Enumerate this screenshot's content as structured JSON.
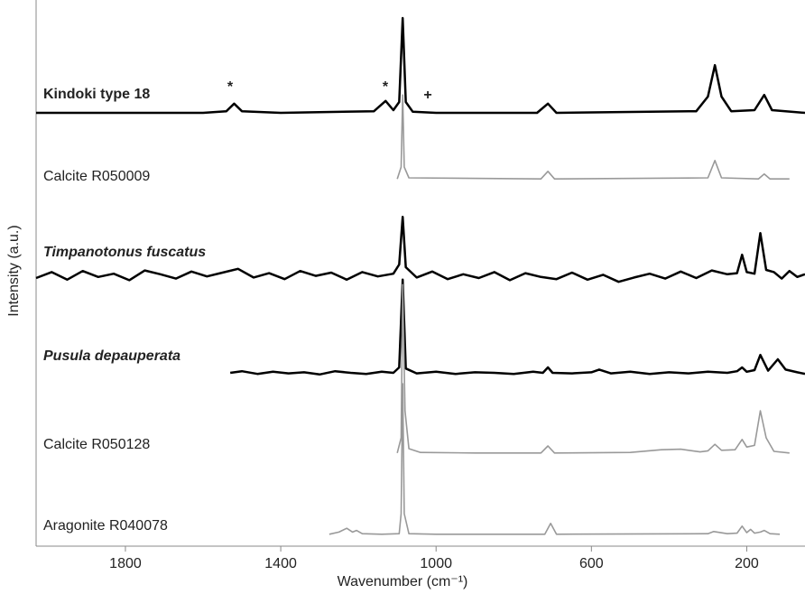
{
  "chart_data": {
    "type": "line",
    "x_label": "Wavenumber (cm⁻¹)",
    "y_label": "Intensity (a.u.)",
    "xlim": [
      2030,
      50
    ],
    "ylim": [
      0,
      100
    ],
    "xticks": [
      1800,
      1400,
      1000,
      600,
      200
    ],
    "annotations": [
      "*",
      "*",
      "+"
    ],
    "series": [
      {
        "name": "Kindoki type 18",
        "color": "#000000",
        "style": "bold",
        "x": [
          2030,
          1600,
          1540,
          1520,
          1500,
          1400,
          1160,
          1130,
          1110,
          1095,
          1086,
          1078,
          1060,
          1000,
          740,
          712,
          690,
          330,
          300,
          282,
          265,
          240,
          180,
          155,
          135,
          50
        ],
        "values": [
          80,
          80,
          80.3,
          81.7,
          80.3,
          80,
          80.3,
          82.2,
          80.5,
          82,
          97.5,
          82,
          80.2,
          80,
          80,
          81.7,
          80,
          80.3,
          83,
          88.8,
          83,
          80.3,
          80.5,
          83.3,
          80.5,
          80
        ]
      },
      {
        "name": "Calcite R050009",
        "color": "#999999",
        "style": "normal",
        "x": [
          1100,
          1090,
          1086,
          1082,
          1070,
          730,
          712,
          695,
          300,
          282,
          265,
          170,
          155,
          140,
          90
        ],
        "values": [
          67.8,
          70,
          83.3,
          70,
          68,
          67.8,
          69.2,
          67.8,
          68,
          71.2,
          68,
          67.8,
          68.7,
          67.8,
          67.8
        ]
      },
      {
        "name": "Timpanotonus fuscatus",
        "color": "#000000",
        "style": "bold-italic",
        "x": [
          2030,
          1990,
          1950,
          1910,
          1870,
          1830,
          1790,
          1750,
          1710,
          1670,
          1630,
          1590,
          1550,
          1510,
          1470,
          1430,
          1390,
          1350,
          1310,
          1270,
          1230,
          1190,
          1150,
          1110,
          1095,
          1086,
          1078,
          1050,
          1010,
          970,
          930,
          890,
          850,
          810,
          770,
          730,
          690,
          650,
          610,
          570,
          530,
          490,
          450,
          410,
          370,
          330,
          290,
          250,
          225,
          212,
          200,
          180,
          165,
          150,
          130,
          110,
          90,
          70,
          50
        ],
        "values": [
          49.5,
          50.6,
          49.2,
          50.8,
          49.7,
          50.3,
          49.1,
          50.9,
          50.2,
          49.4,
          50.7,
          49.8,
          50.5,
          51.2,
          49.6,
          50.4,
          49.3,
          50.8,
          49.9,
          50.5,
          49.2,
          50.6,
          49.8,
          50.3,
          52,
          60.8,
          51.5,
          49.6,
          50.7,
          49.3,
          50.2,
          49.5,
          50.6,
          49.1,
          50.4,
          49.7,
          49.3,
          50.5,
          49.2,
          50.1,
          48.8,
          49.6,
          50.3,
          49.4,
          50.7,
          49.5,
          50.9,
          50.2,
          50.4,
          53.8,
          50.6,
          50.3,
          57.8,
          51,
          50.6,
          49.4,
          50.8,
          49.7,
          50.2
        ]
      },
      {
        "name": "Pusula depauperata",
        "color": "#000000",
        "style": "bold-italic",
        "x": [
          1530,
          1500,
          1460,
          1420,
          1380,
          1340,
          1300,
          1260,
          1220,
          1180,
          1140,
          1110,
          1095,
          1086,
          1078,
          1050,
          1000,
          950,
          900,
          850,
          800,
          750,
          725,
          712,
          700,
          650,
          600,
          580,
          550,
          500,
          450,
          400,
          350,
          300,
          250,
          225,
          212,
          200,
          180,
          165,
          145,
          120,
          100,
          70,
          50
        ],
        "values": [
          32,
          32.3,
          31.8,
          32.2,
          31.9,
          32.1,
          31.7,
          32.3,
          32,
          31.8,
          32.2,
          32,
          33,
          49.2,
          32.8,
          31.9,
          32.2,
          31.8,
          32.1,
          32,
          31.8,
          32.2,
          32,
          33,
          32,
          31.9,
          32.1,
          32.6,
          31.9,
          32.2,
          31.8,
          32.1,
          31.9,
          32.2,
          32,
          32.3,
          33,
          32.2,
          32.5,
          35.3,
          32.4,
          34.5,
          32.6,
          32.1,
          31.8
        ]
      },
      {
        "name": "Calcite R050128",
        "color": "#999999",
        "style": "normal",
        "x": [
          1100,
          1090,
          1086,
          1080,
          1070,
          1040,
          900,
          730,
          712,
          695,
          500,
          420,
          370,
          320,
          300,
          282,
          265,
          230,
          212,
          200,
          180,
          165,
          150,
          130,
          90
        ],
        "values": [
          17.2,
          20,
          48.3,
          25,
          18,
          17.3,
          17.2,
          17.2,
          18.5,
          17.2,
          17.3,
          17.8,
          17.9,
          17.4,
          17.6,
          18.8,
          17.7,
          17.8,
          19.7,
          18.3,
          18.6,
          25,
          20,
          17.5,
          17.2
        ]
      },
      {
        "name": "Aragonite R040078",
        "color": "#999999",
        "style": "normal",
        "x": [
          1275,
          1250,
          1230,
          1215,
          1205,
          1190,
          1140,
          1095,
          1090,
          1086,
          1082,
          1070,
          1000,
          720,
          705,
          690,
          300,
          285,
          250,
          225,
          212,
          200,
          190,
          180,
          165,
          155,
          140,
          115
        ],
        "values": [
          2.2,
          2.6,
          3.3,
          2.6,
          2.9,
          2.3,
          2.2,
          2.3,
          6,
          30,
          6,
          2.3,
          2.2,
          2.2,
          4.2,
          2.2,
          2.3,
          2.7,
          2.3,
          2.4,
          3.7,
          2.5,
          3.1,
          2.4,
          2.6,
          2.9,
          2.3,
          2.2
        ]
      }
    ]
  }
}
